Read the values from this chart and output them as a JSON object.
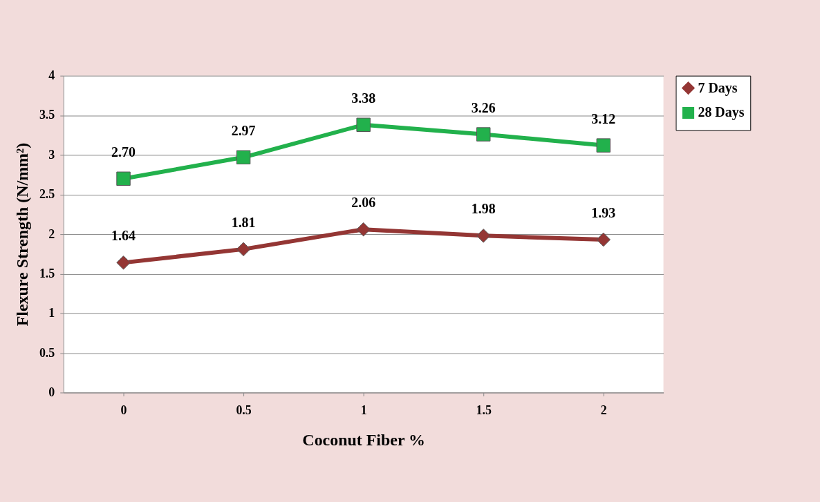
{
  "chart_data": {
    "type": "line",
    "xlabel": "Coconut Fiber %",
    "ylabel": "Flexure Strength (N/mm²)",
    "categories": [
      "0",
      "0.5",
      "1",
      "1.5",
      "2"
    ],
    "series": [
      {
        "name": "7 Days",
        "color": "#943634",
        "marker": "diamond",
        "values": [
          1.64,
          1.81,
          2.06,
          1.98,
          1.93
        ],
        "value_labels": [
          "1.64",
          "1.81",
          "2.06",
          "1.98",
          "1.93"
        ]
      },
      {
        "name": "28 Days",
        "color": "#22b14c",
        "marker": "square",
        "values": [
          2.7,
          2.97,
          3.38,
          3.26,
          3.12
        ],
        "value_labels": [
          "2.70",
          "2.97",
          "3.38",
          "3.26",
          "3.12"
        ]
      }
    ],
    "ylim": [
      0,
      4
    ],
    "yticks": [
      0,
      0.5,
      1,
      1.5,
      2,
      2.5,
      3,
      3.5,
      4
    ],
    "grid": "y",
    "legend": "right"
  }
}
